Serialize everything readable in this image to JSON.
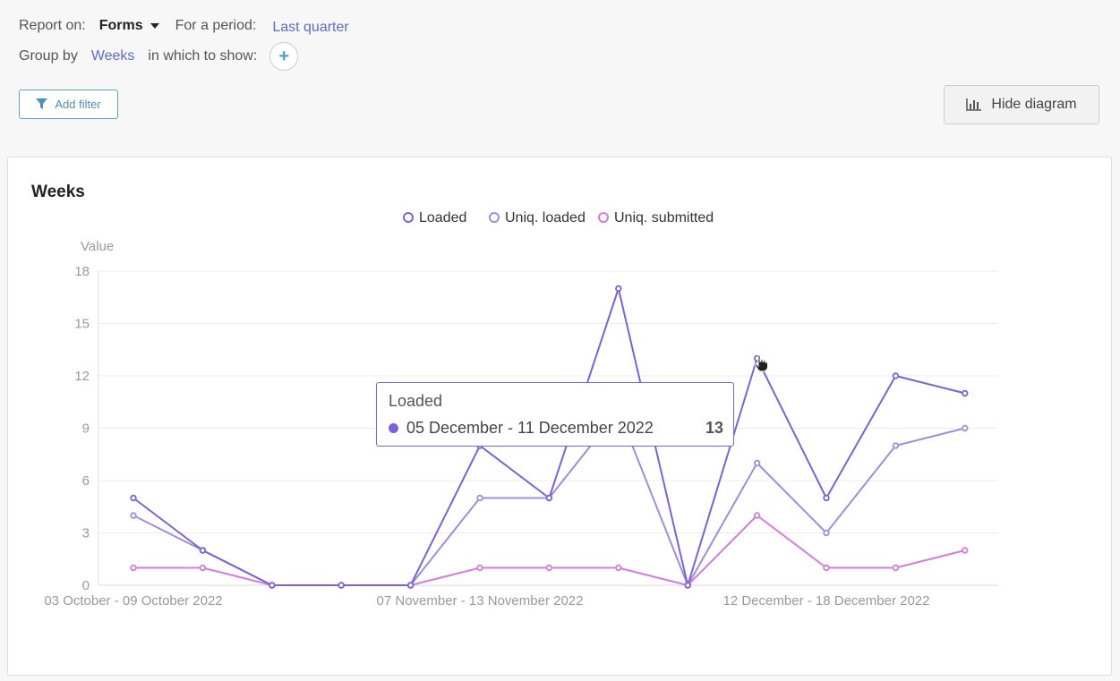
{
  "toolbar": {
    "report_on_label": "Report on:",
    "report_on_value": "Forms",
    "period_label": "For a period:",
    "period_value": "Last quarter",
    "group_by_label": "Group by",
    "group_by_value": "Weeks",
    "show_label": "in which to show:",
    "add_show_symbol": "+",
    "add_filter_label": "Add filter",
    "hide_diagram_label": "Hide diagram"
  },
  "card": {
    "title": "Weeks"
  },
  "tooltip": {
    "title": "Loaded",
    "period": "05 December - 11 December 2022",
    "value": "13"
  },
  "colors": {
    "loaded": "#7b63d6",
    "uniq_loaded": "#9d8fd9",
    "uniq_submitted": "#d67bdc",
    "grid": "#ececec",
    "axis_text": "#999999"
  },
  "chart_data": {
    "type": "line",
    "ylabel": "Value",
    "ylim": [
      0,
      18
    ],
    "yticks": [
      0,
      3,
      6,
      9,
      12,
      15,
      18
    ],
    "x": [
      "w1",
      "w2",
      "w3",
      "w4",
      "w5",
      "w6",
      "w7",
      "w8",
      "w9",
      "w10",
      "w11",
      "w12",
      "w13",
      "w14"
    ],
    "x_tick_labels": [
      {
        "index": 0,
        "label": "03 October - 09 October 2022"
      },
      {
        "index": 5,
        "label": "07 November - 13 November 2022"
      },
      {
        "index": 10,
        "label": "12 December - 18 December 2022"
      }
    ],
    "legend_position": "top-center",
    "series": [
      {
        "name": "Loaded",
        "color": "#7b63d6",
        "values": [
          5,
          2,
          0,
          0,
          0,
          8,
          5,
          17,
          0,
          13,
          5,
          12,
          11,
          null
        ]
      },
      {
        "name": "Uniq. loaded",
        "color": "#9d8fd9",
        "values": [
          4,
          2,
          0,
          0,
          0,
          5,
          5,
          10,
          0,
          7,
          3,
          8,
          9,
          null
        ]
      },
      {
        "name": "Uniq. submitted",
        "color": "#d67bdc",
        "values": [
          1,
          1,
          0,
          0,
          0,
          1,
          1,
          1,
          0,
          4,
          1,
          1,
          2,
          null
        ]
      }
    ]
  }
}
